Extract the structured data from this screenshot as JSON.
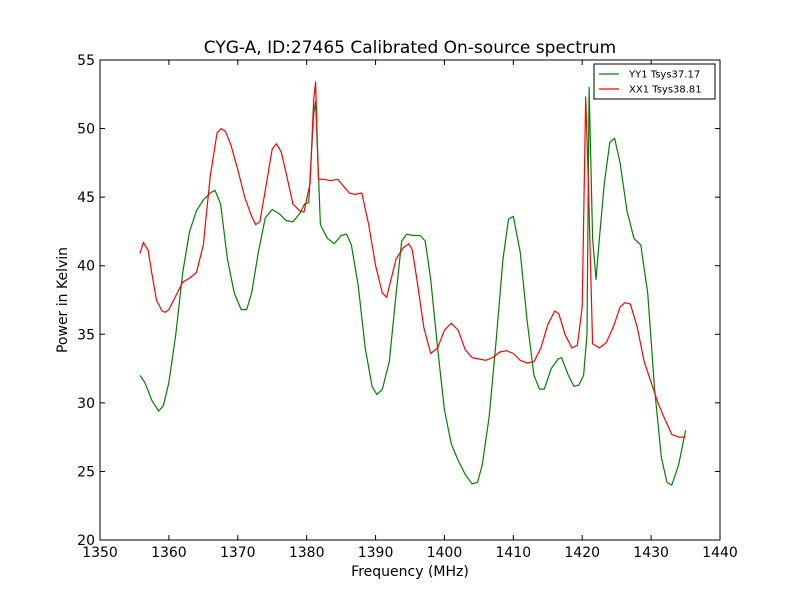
{
  "chart_data": {
    "type": "line",
    "title": "CYG-A, ID:27465 Calibrated On-source spectrum",
    "xlabel": "Frequency (MHz)",
    "ylabel": "Power in Kelvin",
    "xlim": [
      1350,
      1440
    ],
    "ylim": [
      20,
      55
    ],
    "xticks": [
      1350,
      1360,
      1370,
      1380,
      1390,
      1400,
      1410,
      1420,
      1430,
      1440
    ],
    "yticks": [
      20,
      25,
      30,
      35,
      40,
      45,
      50,
      55
    ],
    "grid": false,
    "legend_position": "top-right",
    "series": [
      {
        "name": "YY1 Tsys37.17",
        "color": "#008000",
        "x": [
          1355.8,
          1356.5,
          1357.5,
          1358.5,
          1359.2,
          1360.0,
          1361.0,
          1362.0,
          1363.0,
          1364.0,
          1365.0,
          1366.0,
          1366.7,
          1367.5,
          1368.5,
          1369.5,
          1370.5,
          1371.3,
          1372.0,
          1373.0,
          1374.0,
          1375.0,
          1376.0,
          1377.0,
          1378.0,
          1379.0,
          1379.7,
          1380.3,
          1381.0,
          1381.3,
          1382.0,
          1383.0,
          1384.0,
          1385.0,
          1385.8,
          1386.5,
          1387.5,
          1388.5,
          1389.5,
          1390.2,
          1391.0,
          1392.0,
          1393.0,
          1393.8,
          1394.5,
          1395.5,
          1396.5,
          1397.2,
          1398.0,
          1399.0,
          1400.0,
          1401.0,
          1402.0,
          1403.0,
          1404.0,
          1404.8,
          1405.5,
          1406.5,
          1407.5,
          1408.5,
          1409.3,
          1410.0,
          1411.0,
          1412.0,
          1413.0,
          1413.8,
          1414.5,
          1415.5,
          1416.5,
          1417.0,
          1418.0,
          1418.8,
          1419.5,
          1420.2,
          1420.7,
          1421.0,
          1421.5,
          1422.0,
          1422.5,
          1423.2,
          1424.0,
          1424.7,
          1425.5,
          1426.5,
          1427.5,
          1428.5,
          1429.5,
          1430.5,
          1431.5,
          1432.3,
          1433.0,
          1434.0,
          1435.0
        ],
        "y": [
          32.0,
          31.5,
          30.2,
          29.4,
          29.8,
          31.5,
          35.0,
          39.5,
          42.5,
          44.0,
          44.8,
          45.3,
          45.5,
          44.5,
          40.5,
          38.0,
          36.8,
          36.8,
          38.0,
          41.0,
          43.5,
          44.1,
          43.8,
          43.3,
          43.2,
          43.8,
          44.5,
          44.6,
          51.0,
          52.0,
          43.0,
          42.0,
          41.6,
          42.2,
          42.3,
          41.5,
          38.5,
          34.0,
          31.2,
          30.6,
          31.0,
          33.0,
          38.0,
          41.8,
          42.3,
          42.2,
          42.2,
          41.8,
          39.0,
          34.0,
          29.5,
          27.0,
          25.8,
          24.8,
          24.1,
          24.2,
          25.5,
          29.0,
          34.5,
          40.5,
          43.4,
          43.6,
          41.0,
          36.0,
          32.0,
          31.0,
          31.0,
          32.5,
          33.2,
          33.3,
          32.0,
          31.2,
          31.3,
          32.0,
          35.0,
          53.0,
          42.0,
          39.0,
          42.0,
          46.0,
          49.0,
          49.3,
          47.5,
          44.0,
          42.0,
          41.5,
          38.0,
          31.0,
          26.0,
          24.2,
          24.0,
          25.5,
          28.0
        ]
      },
      {
        "name": "XX1 Tsys38.81",
        "color": "#ff0000",
        "x": [
          1355.8,
          1356.3,
          1357.0,
          1357.5,
          1358.2,
          1359.0,
          1359.5,
          1360.0,
          1361.0,
          1362.0,
          1363.0,
          1364.0,
          1365.0,
          1366.0,
          1367.0,
          1367.6,
          1368.2,
          1369.0,
          1370.0,
          1371.0,
          1372.0,
          1372.6,
          1373.2,
          1374.0,
          1375.0,
          1375.6,
          1376.3,
          1377.0,
          1378.0,
          1379.0,
          1379.6,
          1380.5,
          1381.0,
          1381.3,
          1381.7,
          1382.5,
          1383.5,
          1384.5,
          1385.5,
          1386.2,
          1387.0,
          1388.0,
          1389.0,
          1390.0,
          1391.0,
          1391.6,
          1392.0,
          1393.0,
          1394.0,
          1394.8,
          1395.3,
          1396.0,
          1397.0,
          1398.0,
          1399.0,
          1400.0,
          1401.0,
          1402.0,
          1403.0,
          1404.0,
          1405.0,
          1406.0,
          1407.0,
          1408.0,
          1409.0,
          1410.0,
          1411.0,
          1412.0,
          1413.0,
          1414.0,
          1415.0,
          1416.0,
          1416.6,
          1417.5,
          1418.5,
          1419.3,
          1420.0,
          1420.5,
          1420.9,
          1421.5,
          1422.5,
          1423.5,
          1424.5,
          1425.5,
          1426.2,
          1427.0,
          1428.0,
          1429.0,
          1430.0,
          1431.0,
          1432.0,
          1433.0,
          1434.0,
          1435.0
        ],
        "y": [
          40.9,
          41.7,
          41.1,
          39.5,
          37.5,
          36.7,
          36.6,
          36.8,
          37.8,
          38.8,
          39.1,
          39.5,
          41.5,
          46.5,
          49.7,
          50.0,
          49.8,
          48.8,
          47.0,
          45.0,
          43.6,
          43.0,
          43.2,
          45.5,
          48.5,
          48.9,
          48.3,
          46.8,
          44.5,
          44.0,
          43.9,
          46.0,
          52.0,
          53.4,
          46.3,
          46.3,
          46.2,
          46.3,
          45.7,
          45.3,
          45.2,
          45.3,
          43.0,
          40.0,
          38.0,
          37.7,
          38.5,
          40.5,
          41.3,
          41.6,
          41.2,
          39.0,
          35.5,
          33.6,
          34.0,
          35.3,
          35.8,
          35.3,
          33.9,
          33.3,
          33.2,
          33.1,
          33.3,
          33.7,
          33.8,
          33.6,
          33.1,
          32.9,
          33.0,
          34.0,
          35.7,
          36.7,
          36.5,
          35.0,
          34.0,
          34.2,
          37.0,
          52.3,
          46.0,
          34.3,
          34.0,
          34.4,
          35.5,
          37.0,
          37.3,
          37.2,
          35.5,
          33.0,
          31.5,
          30.0,
          28.8,
          27.7,
          27.5,
          27.5
        ]
      }
    ]
  }
}
